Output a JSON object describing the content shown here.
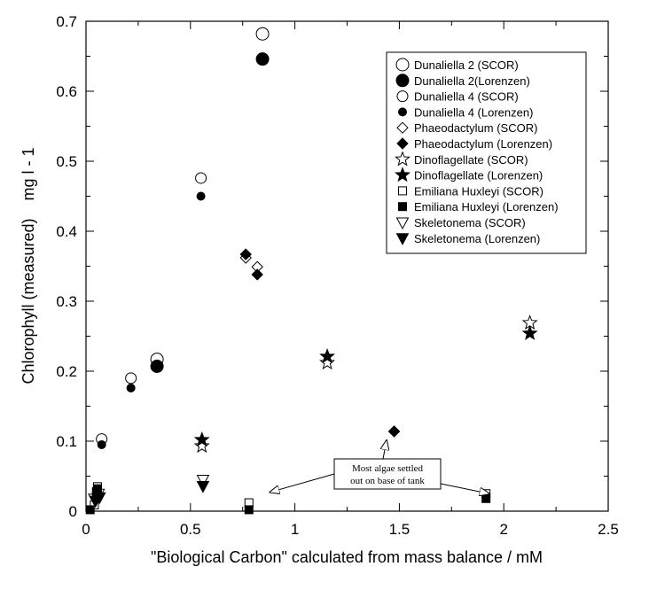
{
  "chart_data": {
    "type": "scatter",
    "title": "",
    "xlabel": "\"Biological Carbon\" calculated from mass balance / mM",
    "ylabel": "Chlorophyll (measured)    mg l - 1",
    "xlim": [
      0,
      2.5
    ],
    "ylim": [
      0,
      0.7
    ],
    "x_ticks": [
      "0",
      "0.5",
      "1",
      "1.5",
      "2",
      "2.5"
    ],
    "y_ticks": [
      "0",
      "0.1",
      "0.2",
      "0.3",
      "0.4",
      "0.5",
      "0.6",
      "0.7"
    ],
    "grid": false,
    "legend_position": "top-right",
    "series": [
      {
        "name": "Dunaliella 2 (SCOR)",
        "marker": "circle-open-large",
        "points": [
          [
            0.34,
            0.217
          ],
          [
            0.845,
            0.682
          ]
        ]
      },
      {
        "name": "Dunaliella 2(Lorenzen)",
        "marker": "circle-filled-large",
        "points": [
          [
            0.34,
            0.207
          ],
          [
            0.845,
            0.646
          ]
        ]
      },
      {
        "name": "Dunaliella 4 (SCOR)",
        "marker": "circle-open",
        "points": [
          [
            0.075,
            0.103
          ],
          [
            0.215,
            0.19
          ],
          [
            0.55,
            0.476
          ]
        ]
      },
      {
        "name": "Dunaliella 4 (Lorenzen)",
        "marker": "circle-filled",
        "points": [
          [
            0.075,
            0.095
          ],
          [
            0.215,
            0.176
          ],
          [
            0.55,
            0.45
          ]
        ]
      },
      {
        "name": "Phaeodactylum (SCOR)",
        "marker": "diamond-open",
        "points": [
          [
            0.765,
            0.362
          ],
          [
            0.82,
            0.349
          ],
          [
            1.475,
            0.114
          ]
        ]
      },
      {
        "name": "Phaeodactylum (Lorenzen)",
        "marker": "diamond-filled",
        "points": [
          [
            0.765,
            0.367
          ],
          [
            0.82,
            0.338
          ],
          [
            1.475,
            0.114
          ]
        ]
      },
      {
        "name": "Dinoflagellate (SCOR)",
        "marker": "star-open",
        "points": [
          [
            0.555,
            0.093
          ],
          [
            1.155,
            0.212
          ],
          [
            2.125,
            0.269
          ]
        ]
      },
      {
        "name": "Dinoflagellate (Lorenzen)",
        "marker": "star-filled",
        "points": [
          [
            0.555,
            0.102
          ],
          [
            1.155,
            0.221
          ],
          [
            2.125,
            0.254
          ]
        ]
      },
      {
        "name": "Emiliana Huxleyi (SCOR)",
        "marker": "square-open",
        "points": [
          [
            0.04,
            0.009
          ],
          [
            0.05,
            0.022
          ],
          [
            0.055,
            0.035
          ],
          [
            0.78,
            0.012
          ],
          [
            1.915,
            0.025
          ]
        ]
      },
      {
        "name": "Emiliana Huxleyi (Lorenzen)",
        "marker": "square-filled",
        "points": [
          [
            0.02,
            0.002
          ],
          [
            0.05,
            0.028
          ],
          [
            0.055,
            0.032
          ],
          [
            0.78,
            0.002
          ],
          [
            1.915,
            0.018
          ]
        ]
      },
      {
        "name": "Skeletonema (SCOR)",
        "marker": "triangle-down-open",
        "points": [
          [
            0.04,
            0.018
          ],
          [
            0.06,
            0.025
          ],
          [
            0.56,
            0.045
          ]
        ]
      },
      {
        "name": "Skeletonema (Lorenzen)",
        "marker": "triangle-down-filled",
        "points": [
          [
            0.045,
            0.015
          ],
          [
            0.065,
            0.02
          ],
          [
            0.56,
            0.036
          ]
        ]
      }
    ],
    "annotation": {
      "lines": [
        "Most algae settled",
        "out on base of tank"
      ],
      "arrow_targets": [
        [
          0.88,
          0.027
        ],
        [
          1.93,
          0.025
        ]
      ]
    }
  }
}
